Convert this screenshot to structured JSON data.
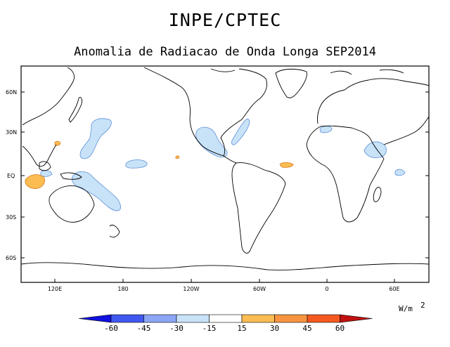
{
  "title": "INPE/CPTEC",
  "subtitle": "Anomalia de Radiacao de Onda Longa SEP2014",
  "map": {
    "projection": "cylindrical equidistant",
    "lat_ticks": [
      "60N",
      "30N",
      "EQ",
      "30S",
      "60S"
    ],
    "lon_ticks": [
      "120E",
      "180",
      "120W",
      "60W",
      "0",
      "60E"
    ]
  },
  "colorbar": {
    "unit_label": "W/m",
    "unit_exponent": "2",
    "labels": [
      "-60",
      "-45",
      "-30",
      "-15",
      "15",
      "30",
      "45",
      "60"
    ],
    "colors": [
      "#1010e0",
      "#4058f0",
      "#8ca6f5",
      "#c8e2f8",
      "#ffffff",
      "#fbbc52",
      "#f89440",
      "#f45a20",
      "#c01010"
    ]
  }
}
